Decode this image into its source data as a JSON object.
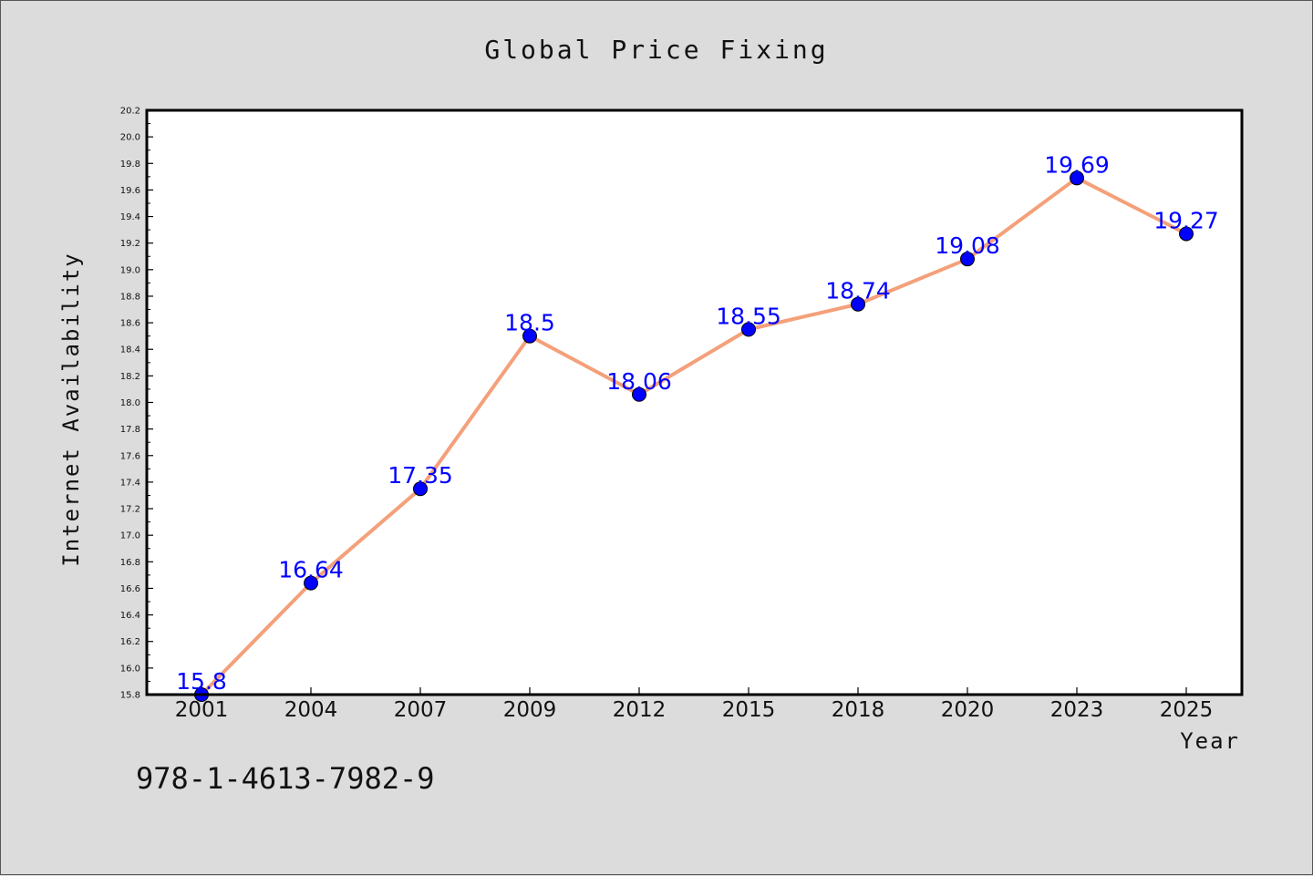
{
  "chart_data": {
    "type": "line",
    "title": "Global Price Fixing",
    "xlabel": "Year",
    "ylabel": "Internet Availability",
    "categories": [
      "2001",
      "2004",
      "2007",
      "2009",
      "2012",
      "2015",
      "2018",
      "2020",
      "2023",
      "2025"
    ],
    "series": [
      {
        "values": [
          15.8,
          16.64,
          17.35,
          18.5,
          18.06,
          18.55,
          18.74,
          19.08,
          19.69,
          19.27
        ],
        "data_labels": [
          "15.8",
          "16.64",
          "17.35",
          "18.5",
          "18.06",
          "18.55",
          "18.74",
          "19.08",
          "19.69",
          "19.27"
        ]
      }
    ],
    "ylim": [
      15.8,
      20.2
    ],
    "y_ticks": [
      "15.8",
      "16.0",
      "16.2",
      "16.4",
      "16.6",
      "16.8",
      "17.0",
      "17.2",
      "17.4",
      "17.6",
      "17.8",
      "18.0",
      "18.2",
      "18.4",
      "18.6",
      "18.8",
      "19.0",
      "19.2",
      "19.4",
      "19.6",
      "19.8",
      "20.0",
      "20.2"
    ],
    "grid": false,
    "legend": "none",
    "colors": {
      "line": "#f4a07a",
      "marker": "#0000ff",
      "data_label": "#0000ff",
      "background": "#dcdcdc",
      "plot_background": "#ffffff"
    }
  },
  "annotation": {
    "isbn": "978-1-4613-7982-9"
  }
}
